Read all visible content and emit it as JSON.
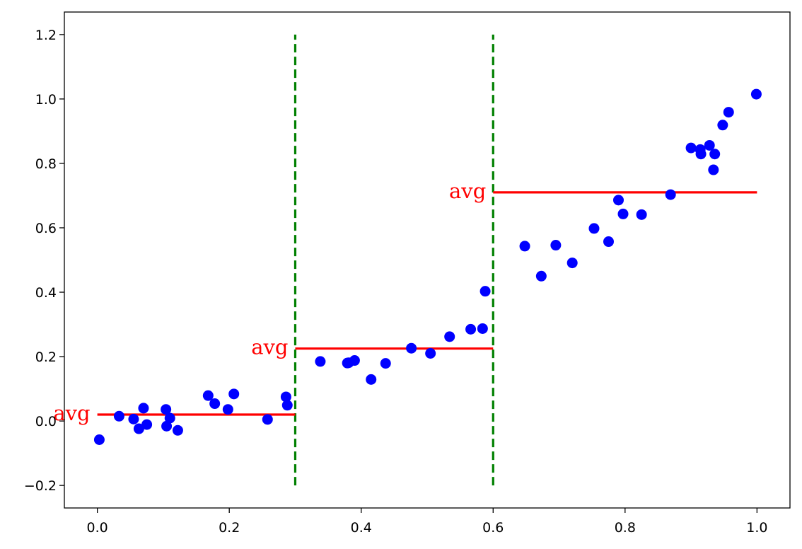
{
  "chart_data": {
    "type": "scatter",
    "title": "",
    "xlabel": "",
    "ylabel": "",
    "xlim": [
      -0.05,
      1.05
    ],
    "ylim": [
      -0.27,
      1.27
    ],
    "grid": false,
    "x_ticks": [
      {
        "value": 0.0,
        "label": "0.0"
      },
      {
        "value": 0.2,
        "label": "0.2"
      },
      {
        "value": 0.4,
        "label": "0.4"
      },
      {
        "value": 0.6,
        "label": "0.6"
      },
      {
        "value": 0.8,
        "label": "0.8"
      },
      {
        "value": 1.0,
        "label": "1.0"
      }
    ],
    "y_ticks": [
      {
        "value": -0.2,
        "label": "−0.2"
      },
      {
        "value": 0.0,
        "label": "0.0"
      },
      {
        "value": 0.2,
        "label": "0.2"
      },
      {
        "value": 0.4,
        "label": "0.4"
      },
      {
        "value": 0.6,
        "label": "0.6"
      },
      {
        "value": 0.8,
        "label": "0.8"
      },
      {
        "value": 1.0,
        "label": "1.0"
      },
      {
        "value": 1.2,
        "label": "1.2"
      }
    ],
    "points": {
      "color": "#0000ff",
      "x": [
        0.003,
        0.033,
        0.055,
        0.063,
        0.07,
        0.075,
        0.104,
        0.105,
        0.11,
        0.122,
        0.168,
        0.178,
        0.198,
        0.207,
        0.258,
        0.286,
        0.288,
        0.338,
        0.379,
        0.381,
        0.39,
        0.415,
        0.437,
        0.476,
        0.505,
        0.534,
        0.566,
        0.584,
        0.588,
        0.648,
        0.673,
        0.695,
        0.72,
        0.753,
        0.775,
        0.79,
        0.797,
        0.825,
        0.869,
        0.9,
        0.914,
        0.915,
        0.928,
        0.934,
        0.936,
        0.948,
        0.957,
        0.999
      ],
      "y": [
        -0.058,
        0.015,
        0.006,
        -0.024,
        0.04,
        -0.011,
        0.036,
        -0.016,
        0.009,
        -0.029,
        0.079,
        0.054,
        0.036,
        0.084,
        0.005,
        0.075,
        0.049,
        0.185,
        0.18,
        0.181,
        0.188,
        0.129,
        0.179,
        0.226,
        0.21,
        0.262,
        0.285,
        0.287,
        0.403,
        0.543,
        0.45,
        0.546,
        0.491,
        0.598,
        0.557,
        0.686,
        0.643,
        0.641,
        0.703,
        0.848,
        0.843,
        0.829,
        0.856,
        0.78,
        0.829,
        0.919,
        0.959,
        1.015
      ]
    },
    "averages": {
      "color": "#ff0000",
      "segments": [
        {
          "x_start": 0.0,
          "x_end": 0.3,
          "value": 0.02,
          "label": "avg"
        },
        {
          "x_start": 0.3,
          "x_end": 0.6,
          "value": 0.225,
          "label": "avg"
        },
        {
          "x_start": 0.6,
          "x_end": 1.0,
          "value": 0.71,
          "label": "avg"
        }
      ]
    },
    "splits": {
      "color": "#008000",
      "style": "dashed",
      "x": [
        0.3,
        0.6
      ],
      "y_range": [
        -0.2,
        1.2
      ]
    }
  }
}
